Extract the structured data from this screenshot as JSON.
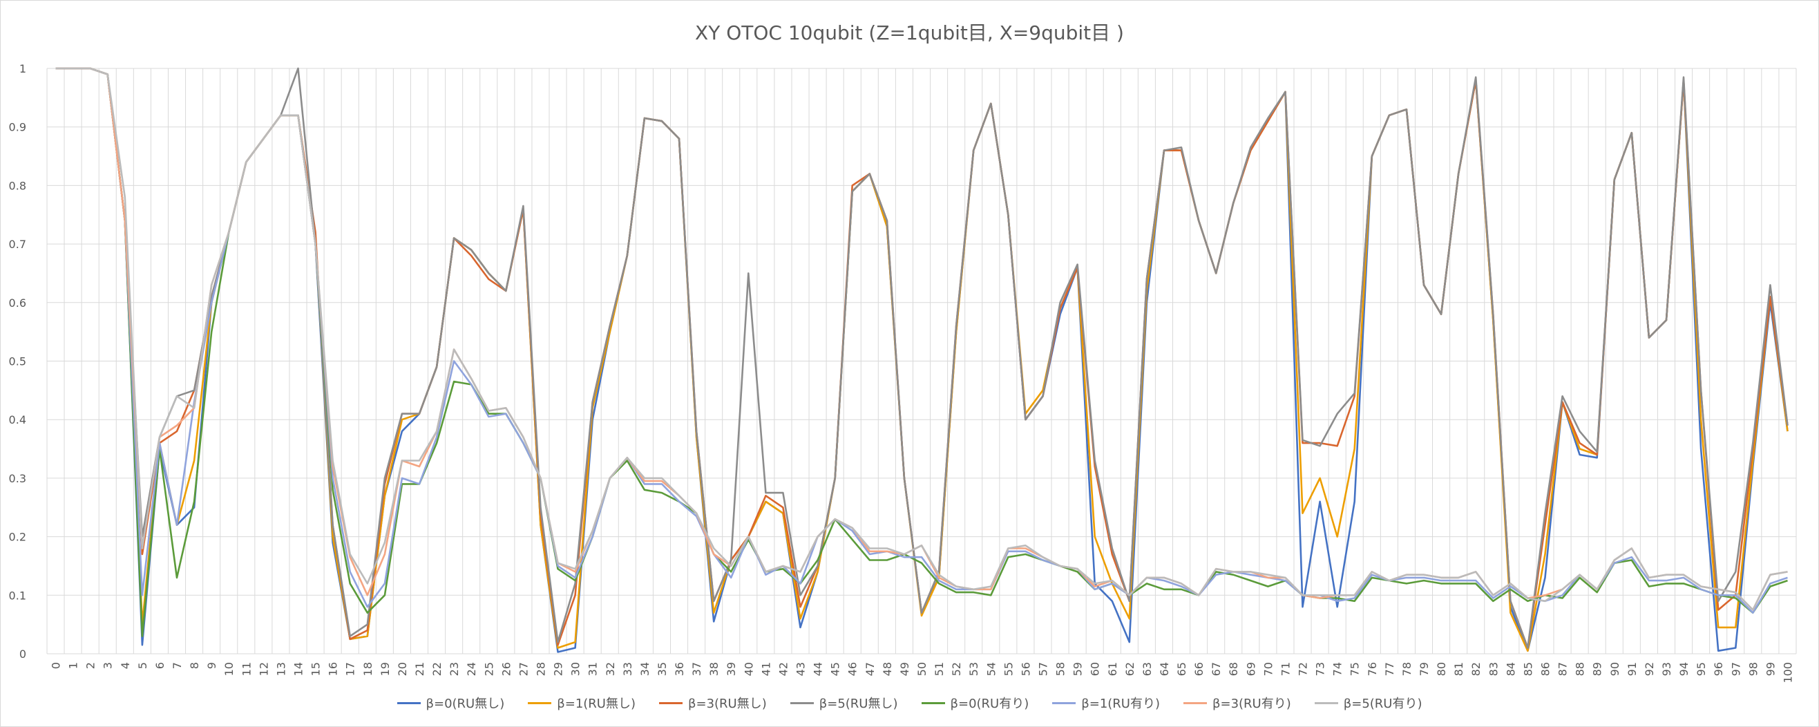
{
  "chart_data": {
    "type": "line",
    "title": "XY OTOC 10qubit (Z=1qubit目, X=9qubit目 )",
    "xlabel": "",
    "ylabel": "",
    "ylim": [
      0,
      1
    ],
    "yticks": [
      "0",
      "0.1",
      "0.2",
      "0.3",
      "0.4",
      "0.5",
      "0.6",
      "0.7",
      "0.8",
      "0.9",
      "1"
    ],
    "grid": true,
    "legend_position": "bottom",
    "x": [
      0,
      1,
      2,
      3,
      4,
      5,
      6,
      7,
      8,
      9,
      10,
      11,
      12,
      13,
      14,
      15,
      16,
      17,
      18,
      19,
      20,
      21,
      22,
      23,
      24,
      25,
      26,
      27,
      28,
      29,
      30,
      31,
      32,
      33,
      34,
      35,
      36,
      37,
      38,
      39,
      40,
      41,
      42,
      43,
      44,
      45,
      46,
      47,
      48,
      49,
      50,
      51,
      52,
      53,
      54,
      55,
      56,
      57,
      58,
      59,
      60,
      61,
      62,
      63,
      64,
      65,
      66,
      67,
      68,
      69,
      70,
      71,
      72,
      73,
      74,
      75,
      76,
      77,
      78,
      79,
      80,
      81,
      82,
      83,
      84,
      85,
      86,
      87,
      88,
      89,
      90,
      91,
      92,
      93,
      94,
      95,
      96,
      97,
      98,
      99,
      100
    ],
    "series": [
      {
        "name": "β=0(RU無し)",
        "color": "#4472C4",
        "values": [
          1,
          1,
          1,
          0.99,
          0.74,
          0.015,
          0.35,
          0.22,
          0.25,
          0.6,
          0.72,
          0.84,
          0.88,
          0.92,
          0.92,
          0.7,
          0.19,
          0.025,
          0.03,
          0.27,
          0.38,
          0.41,
          0.49,
          0.71,
          0.69,
          0.65,
          0.62,
          0.76,
          0.22,
          0.003,
          0.01,
          0.4,
          0.55,
          0.68,
          0.915,
          0.91,
          0.88,
          0.37,
          0.055,
          0.16,
          0.2,
          0.26,
          0.24,
          0.045,
          0.14,
          0.3,
          0.79,
          0.82,
          0.73,
          0.3,
          0.07,
          0.13,
          0.55,
          0.86,
          0.94,
          0.75,
          0.4,
          0.44,
          0.58,
          0.66,
          0.12,
          0.09,
          0.02,
          0.6,
          0.86,
          0.86,
          0.74,
          0.65,
          0.77,
          0.86,
          0.91,
          0.96,
          0.08,
          0.26,
          0.08,
          0.26,
          0.85,
          0.92,
          0.93,
          0.63,
          0.58,
          0.82,
          0.98,
          0.57,
          0.08,
          0.005,
          0.13,
          0.43,
          0.34,
          0.335,
          0.81,
          0.89,
          0.54,
          0.57,
          0.98,
          0.35,
          0.005,
          0.01,
          0.32,
          0.6,
          0.38
        ]
      },
      {
        "name": "β=1(RU無し)",
        "color": "#ED9E00",
        "values": [
          1,
          1,
          1,
          0.99,
          0.74,
          0.05,
          0.36,
          0.22,
          0.33,
          0.6,
          0.72,
          0.84,
          0.88,
          0.92,
          0.92,
          0.71,
          0.2,
          0.025,
          0.03,
          0.27,
          0.4,
          0.41,
          0.49,
          0.71,
          0.69,
          0.65,
          0.62,
          0.76,
          0.22,
          0.01,
          0.02,
          0.42,
          0.55,
          0.68,
          0.915,
          0.91,
          0.88,
          0.37,
          0.07,
          0.16,
          0.2,
          0.26,
          0.24,
          0.06,
          0.14,
          0.3,
          0.79,
          0.82,
          0.73,
          0.3,
          0.065,
          0.13,
          0.55,
          0.86,
          0.94,
          0.75,
          0.41,
          0.45,
          0.59,
          0.66,
          0.2,
          0.12,
          0.06,
          0.62,
          0.86,
          0.86,
          0.74,
          0.65,
          0.77,
          0.86,
          0.91,
          0.96,
          0.24,
          0.3,
          0.2,
          0.35,
          0.85,
          0.92,
          0.93,
          0.63,
          0.58,
          0.82,
          0.98,
          0.57,
          0.07,
          0.005,
          0.17,
          0.43,
          0.35,
          0.34,
          0.81,
          0.89,
          0.54,
          0.57,
          0.98,
          0.4,
          0.045,
          0.045,
          0.33,
          0.61,
          0.38
        ]
      },
      {
        "name": "β=3(RU無し)",
        "color": "#D9662E",
        "values": [
          1,
          1,
          1,
          0.99,
          0.74,
          0.17,
          0.36,
          0.38,
          0.45,
          0.61,
          0.72,
          0.84,
          0.88,
          0.92,
          0.92,
          0.72,
          0.22,
          0.025,
          0.04,
          0.29,
          0.41,
          0.41,
          0.49,
          0.71,
          0.68,
          0.64,
          0.62,
          0.76,
          0.24,
          0.015,
          0.1,
          0.43,
          0.56,
          0.68,
          0.915,
          0.91,
          0.88,
          0.38,
          0.09,
          0.16,
          0.2,
          0.27,
          0.25,
          0.08,
          0.15,
          0.3,
          0.8,
          0.82,
          0.74,
          0.3,
          0.07,
          0.14,
          0.56,
          0.86,
          0.94,
          0.75,
          0.4,
          0.44,
          0.59,
          0.66,
          0.32,
          0.17,
          0.09,
          0.64,
          0.86,
          0.86,
          0.74,
          0.65,
          0.77,
          0.86,
          0.91,
          0.96,
          0.36,
          0.36,
          0.355,
          0.44,
          0.85,
          0.92,
          0.93,
          0.63,
          0.58,
          0.82,
          0.98,
          0.58,
          0.09,
          0.01,
          0.22,
          0.43,
          0.36,
          0.34,
          0.81,
          0.89,
          0.54,
          0.57,
          0.98,
          0.45,
          0.075,
          0.1,
          0.35,
          0.61,
          0.39
        ]
      },
      {
        "name": "β=5(RU無し)",
        "color": "#8C8C8C",
        "values": [
          1,
          1,
          1,
          0.99,
          0.74,
          0.2,
          0.37,
          0.44,
          0.45,
          0.61,
          0.72,
          0.84,
          0.88,
          0.92,
          1,
          0.7,
          0.22,
          0.03,
          0.05,
          0.3,
          0.41,
          0.41,
          0.49,
          0.71,
          0.69,
          0.65,
          0.62,
          0.765,
          0.25,
          0.02,
          0.12,
          0.43,
          0.56,
          0.68,
          0.915,
          0.91,
          0.88,
          0.38,
          0.09,
          0.16,
          0.65,
          0.275,
          0.275,
          0.1,
          0.15,
          0.3,
          0.79,
          0.82,
          0.74,
          0.3,
          0.07,
          0.14,
          0.56,
          0.86,
          0.94,
          0.75,
          0.4,
          0.44,
          0.6,
          0.665,
          0.33,
          0.18,
          0.09,
          0.64,
          0.86,
          0.865,
          0.74,
          0.65,
          0.77,
          0.865,
          0.915,
          0.96,
          0.365,
          0.355,
          0.41,
          0.445,
          0.85,
          0.92,
          0.93,
          0.63,
          0.58,
          0.82,
          0.985,
          0.58,
          0.09,
          0.01,
          0.24,
          0.44,
          0.38,
          0.345,
          0.81,
          0.89,
          0.54,
          0.57,
          0.985,
          0.45,
          0.09,
          0.14,
          0.36,
          0.63,
          0.39
        ]
      },
      {
        "name": "β=0(RU有り)",
        "color": "#5B9B3A",
        "values": [
          1,
          1,
          1,
          0.99,
          0.74,
          0.03,
          0.35,
          0.13,
          0.26,
          0.55,
          0.72,
          0.84,
          0.88,
          0.92,
          0.92,
          0.7,
          0.28,
          0.12,
          0.07,
          0.1,
          0.29,
          0.29,
          0.36,
          0.465,
          0.46,
          0.41,
          0.41,
          0.36,
          0.3,
          0.145,
          0.125,
          0.2,
          0.3,
          0.33,
          0.28,
          0.275,
          0.26,
          0.24,
          0.17,
          0.14,
          0.195,
          0.14,
          0.145,
          0.12,
          0.16,
          0.23,
          0.195,
          0.16,
          0.16,
          0.17,
          0.155,
          0.12,
          0.105,
          0.105,
          0.1,
          0.165,
          0.17,
          0.16,
          0.15,
          0.14,
          0.11,
          0.12,
          0.1,
          0.12,
          0.11,
          0.11,
          0.1,
          0.14,
          0.135,
          0.125,
          0.115,
          0.125,
          0.1,
          0.095,
          0.095,
          0.09,
          0.13,
          0.125,
          0.12,
          0.125,
          0.12,
          0.12,
          0.12,
          0.09,
          0.11,
          0.09,
          0.1,
          0.095,
          0.13,
          0.105,
          0.155,
          0.16,
          0.115,
          0.12,
          0.12,
          0.11,
          0.1,
          0.095,
          0.07,
          0.115,
          0.125
        ]
      },
      {
        "name": "β=1(RU有り)",
        "color": "#8FA3DD",
        "values": [
          1,
          1,
          1,
          0.99,
          0.74,
          0.1,
          0.36,
          0.22,
          0.43,
          0.6,
          0.72,
          0.84,
          0.88,
          0.92,
          0.92,
          0.7,
          0.3,
          0.14,
          0.08,
          0.12,
          0.3,
          0.29,
          0.37,
          0.5,
          0.46,
          0.405,
          0.41,
          0.36,
          0.3,
          0.15,
          0.13,
          0.2,
          0.3,
          0.335,
          0.29,
          0.29,
          0.26,
          0.235,
          0.17,
          0.13,
          0.2,
          0.135,
          0.15,
          0.12,
          0.2,
          0.23,
          0.21,
          0.17,
          0.175,
          0.165,
          0.165,
          0.125,
          0.11,
          0.11,
          0.11,
          0.175,
          0.175,
          0.16,
          0.15,
          0.145,
          0.11,
          0.12,
          0.1,
          0.13,
          0.125,
          0.115,
          0.1,
          0.135,
          0.14,
          0.135,
          0.13,
          0.125,
          0.1,
          0.1,
          0.09,
          0.095,
          0.135,
          0.125,
          0.13,
          0.13,
          0.125,
          0.125,
          0.125,
          0.095,
          0.115,
          0.095,
          0.09,
          0.1,
          0.135,
          0.11,
          0.155,
          0.165,
          0.125,
          0.125,
          0.13,
          0.11,
          0.1,
          0.1,
          0.07,
          0.12,
          0.13
        ]
      },
      {
        "name": "β=3(RU有り)",
        "color": "#F4A582",
        "values": [
          1,
          1,
          1,
          0.99,
          0.74,
          0.18,
          0.37,
          0.39,
          0.42,
          0.63,
          0.72,
          0.84,
          0.88,
          0.92,
          0.92,
          0.7,
          0.32,
          0.165,
          0.1,
          0.17,
          0.33,
          0.32,
          0.38,
          0.52,
          0.47,
          0.415,
          0.42,
          0.37,
          0.3,
          0.155,
          0.14,
          0.21,
          0.3,
          0.335,
          0.295,
          0.295,
          0.27,
          0.24,
          0.17,
          0.15,
          0.2,
          0.14,
          0.15,
          0.14,
          0.2,
          0.23,
          0.215,
          0.175,
          0.175,
          0.17,
          0.185,
          0.13,
          0.115,
          0.11,
          0.11,
          0.18,
          0.18,
          0.165,
          0.15,
          0.145,
          0.115,
          0.125,
          0.1,
          0.13,
          0.13,
          0.12,
          0.1,
          0.145,
          0.14,
          0.14,
          0.13,
          0.13,
          0.1,
          0.095,
          0.1,
          0.1,
          0.14,
          0.125,
          0.135,
          0.135,
          0.13,
          0.13,
          0.14,
          0.1,
          0.12,
          0.095,
          0.1,
          0.11,
          0.135,
          0.11,
          0.16,
          0.18,
          0.13,
          0.135,
          0.135,
          0.115,
          0.11,
          0.105,
          0.075,
          0.135,
          0.14
        ]
      },
      {
        "name": "β=5(RU有り)",
        "color": "#BBBBBB",
        "values": [
          1,
          1,
          1,
          0.99,
          0.78,
          0.18,
          0.37,
          0.44,
          0.42,
          0.63,
          0.72,
          0.84,
          0.88,
          0.92,
          0.92,
          0.7,
          0.33,
          0.17,
          0.12,
          0.19,
          0.33,
          0.33,
          0.38,
          0.52,
          0.47,
          0.415,
          0.42,
          0.37,
          0.3,
          0.155,
          0.145,
          0.21,
          0.3,
          0.335,
          0.3,
          0.3,
          0.27,
          0.24,
          0.18,
          0.15,
          0.2,
          0.14,
          0.15,
          0.14,
          0.2,
          0.23,
          0.215,
          0.18,
          0.18,
          0.17,
          0.185,
          0.135,
          0.115,
          0.11,
          0.115,
          0.18,
          0.185,
          0.165,
          0.15,
          0.145,
          0.12,
          0.125,
          0.1,
          0.13,
          0.13,
          0.12,
          0.1,
          0.145,
          0.14,
          0.14,
          0.135,
          0.13,
          0.1,
          0.1,
          0.1,
          0.1,
          0.14,
          0.125,
          0.135,
          0.135,
          0.13,
          0.13,
          0.14,
          0.1,
          0.12,
          0.095,
          0.09,
          0.11,
          0.135,
          0.11,
          0.16,
          0.18,
          0.13,
          0.135,
          0.135,
          0.115,
          0.11,
          0.105,
          0.075,
          0.135,
          0.14
        ]
      }
    ]
  }
}
